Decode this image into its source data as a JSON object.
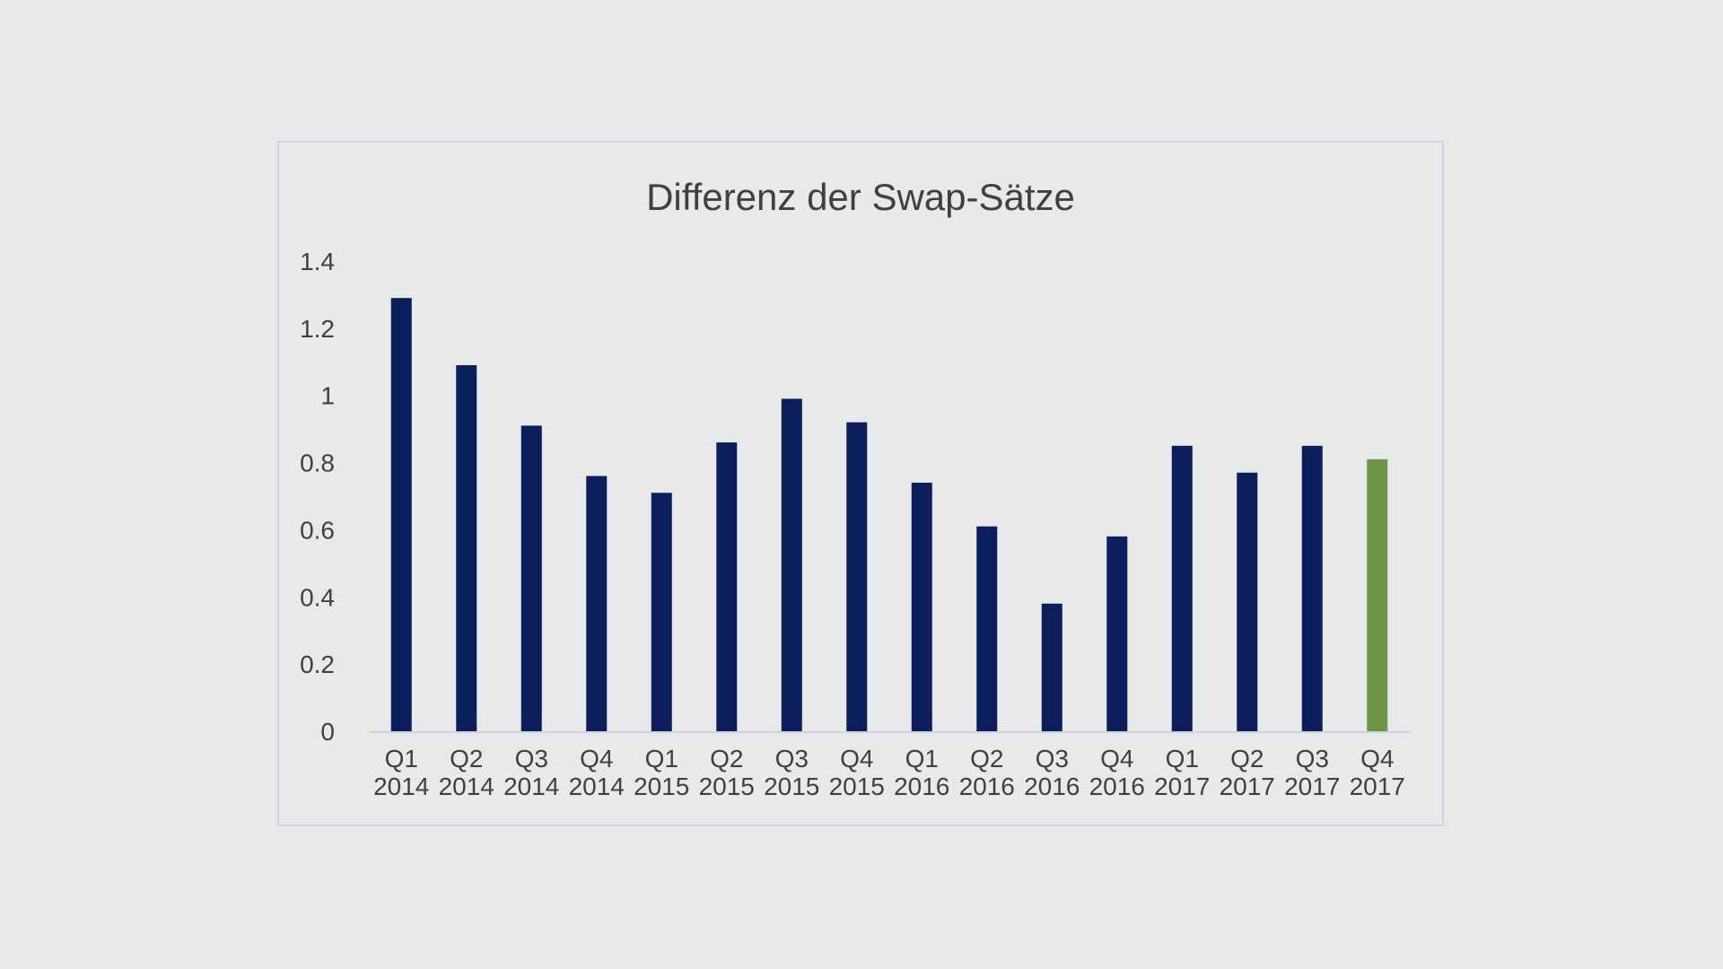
{
  "chart_data": {
    "type": "bar",
    "title": "Differenz der Swap-Sätze",
    "xlabel": "",
    "ylabel": "",
    "categories": [
      [
        "Q1",
        "2014"
      ],
      [
        "Q2",
        "2014"
      ],
      [
        "Q3",
        "2014"
      ],
      [
        "Q4",
        "2014"
      ],
      [
        "Q1",
        "2015"
      ],
      [
        "Q2",
        "2015"
      ],
      [
        "Q3",
        "2015"
      ],
      [
        "Q4",
        "2015"
      ],
      [
        "Q1",
        "2016"
      ],
      [
        "Q2",
        "2016"
      ],
      [
        "Q3",
        "2016"
      ],
      [
        "Q4",
        "2016"
      ],
      [
        "Q1",
        "2017"
      ],
      [
        "Q2",
        "2017"
      ],
      [
        "Q3",
        "2017"
      ],
      [
        "Q4",
        "2017"
      ]
    ],
    "values": [
      1.29,
      1.09,
      0.91,
      0.76,
      0.71,
      0.86,
      0.99,
      0.92,
      0.74,
      0.61,
      0.38,
      0.58,
      0.85,
      0.77,
      0.85,
      0.81
    ],
    "ylim": [
      0,
      1.4
    ],
    "yticks": [
      "0",
      "0.2",
      "0.4",
      "0.6",
      "0.8",
      "1",
      "1.2",
      "1.4"
    ],
    "grid": false,
    "legend": "none",
    "colors": {
      "bar": "#0c1f5c",
      "highlight": "#6e9447",
      "axis": "#d0d2d6"
    },
    "highlight_index": 15
  }
}
